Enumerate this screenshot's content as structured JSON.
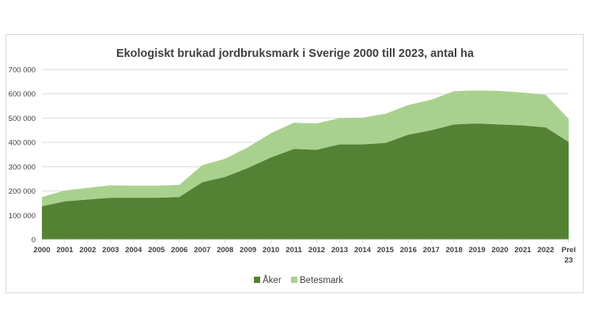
{
  "chart_data": {
    "type": "area",
    "stacked": true,
    "title": "Ekologiskt brukad jordbruksmark i Sverige 2000 till 2023, antal ha",
    "xlabel": "",
    "ylabel": "",
    "categories": [
      "2000",
      "2001",
      "2002",
      "2003",
      "2004",
      "2005",
      "2006",
      "2007",
      "2008",
      "2009",
      "2010",
      "2011",
      "2012",
      "2013",
      "2014",
      "2015",
      "2016",
      "2017",
      "2018",
      "2019",
      "2020",
      "2021",
      "2022",
      "Prel 23"
    ],
    "ylim": [
      0,
      700000
    ],
    "yticks": [
      0,
      100000,
      200000,
      300000,
      400000,
      500000,
      600000,
      700000
    ],
    "ytick_labels": [
      "0",
      "100 000",
      "200 000",
      "300 000",
      "400 000",
      "500 000",
      "600 000",
      "700 000"
    ],
    "grid": true,
    "legend_position": "bottom",
    "series": [
      {
        "name": "Åker",
        "color": "#548235",
        "values": [
          137000,
          157000,
          165000,
          172000,
          172000,
          172000,
          175000,
          236000,
          258000,
          295000,
          338000,
          373000,
          370000,
          392000,
          392000,
          398000,
          432000,
          450000,
          474000,
          478000,
          474000,
          470000,
          462000,
          402000
        ]
      },
      {
        "name": "Betesmark",
        "color": "#a9d18e",
        "values": [
          38000,
          45000,
          48000,
          51000,
          50000,
          50000,
          50000,
          70000,
          75000,
          85000,
          100000,
          108000,
          108000,
          108000,
          110000,
          120000,
          122000,
          126000,
          137000,
          136000,
          138000,
          135000,
          134000,
          95000
        ]
      }
    ]
  }
}
